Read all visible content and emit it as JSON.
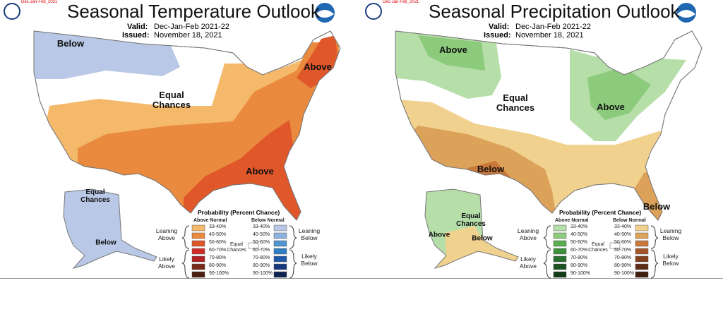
{
  "panels": [
    {
      "tag": "Dec-Jan-Feb_2021",
      "title": "Seasonal Temperature Outlook",
      "valid_label": "Valid:",
      "valid": "Dec-Jan-Feb 2021-22",
      "issued_label": "Issued:",
      "issued": "November 18, 2021",
      "regions": [
        "Below",
        "Equal Chances",
        "Above",
        "Above",
        "Equal Chances",
        "Below"
      ],
      "legend": {
        "title": "Probability (Percent Chance)",
        "above_header": "Above Normal",
        "below_header": "Below Normal",
        "ranges": [
          "33-40%",
          "40-50%",
          "50-60%",
          "60-70%",
          "70-80%",
          "80-90%",
          "90-100%"
        ],
        "leaning_above": "Leaning Above",
        "likely_above": "Likely Above",
        "equal": "Equal Chances",
        "leaning_below": "Leaning Below",
        "likely_below": "Likely Below"
      }
    },
    {
      "tag": "Dec-Jan-Feb_2021",
      "title": "Seasonal Precipitation Outlook",
      "valid_label": "Valid:",
      "valid": "Dec-Jan-Feb 2021-22",
      "issued_label": "Issued:",
      "issued": "November 18, 2021",
      "regions": [
        "Above",
        "Equal Chances",
        "Above",
        "Below",
        "Below",
        "Equal Chances",
        "Above",
        "Below"
      ],
      "legend": {
        "title": "Probability (Percent Chance)",
        "above_header": "Above Normal",
        "below_header": "Below Normal",
        "ranges": [
          "33-40%",
          "40-50%",
          "50-60%",
          "60-70%",
          "70-80%",
          "80-90%",
          "90-100%"
        ],
        "leaning_above": "Leaning Above",
        "likely_above": "Likely Above",
        "equal": "Equal Chances",
        "leaning_below": "Leaning Below",
        "likely_below": "Likely Below"
      }
    }
  ]
}
